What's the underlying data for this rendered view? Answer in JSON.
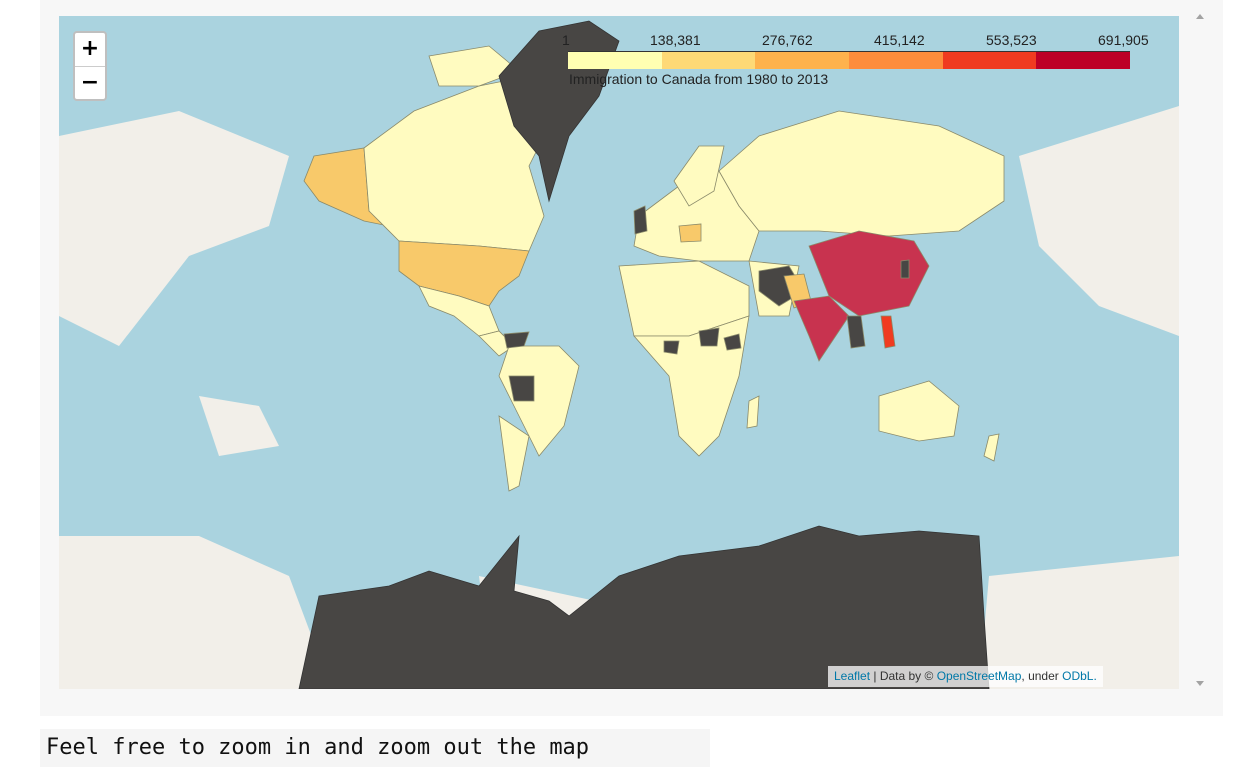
{
  "zoom": {
    "in_label": "+",
    "out_label": "−"
  },
  "legend": {
    "ticks": [
      "1",
      "138,381",
      "276,762",
      "415,142",
      "553,523",
      "691,905"
    ],
    "colors": [
      "#ffffb2",
      "#fed976",
      "#feb24c",
      "#fd8d3c",
      "#f03b20",
      "#bd0026"
    ],
    "caption": "Immigration to Canada from 1980 to 2013"
  },
  "attribution": {
    "leaflet": "Leaflet",
    "sep": " | Data by © ",
    "osm": "OpenStreetMap",
    "under": ", under ",
    "odbl": "ODbL."
  },
  "map_colors": {
    "ocean": "#aad3df",
    "land_base": "#f2efe9",
    "low": "#fffbc0",
    "mid": "#f8c96a",
    "high": "#c8334f",
    "missing": "#484644"
  },
  "note": "Feel free to zoom in and zoom out the map"
}
